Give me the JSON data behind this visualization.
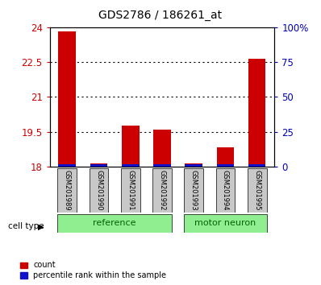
{
  "title": "GDS2786 / 186261_at",
  "samples": [
    "GSM201989",
    "GSM201990",
    "GSM201991",
    "GSM201992",
    "GSM201993",
    "GSM201994",
    "GSM201995"
  ],
  "count_values": [
    23.8,
    18.15,
    19.75,
    19.6,
    18.15,
    18.85,
    22.65
  ],
  "percentile_values": [
    0.12,
    0.12,
    0.12,
    0.12,
    0.1,
    0.12,
    0.12
  ],
  "ymin": 18,
  "ymax": 24,
  "yticks": [
    18,
    19.5,
    21,
    22.5,
    24
  ],
  "ytick_labels": [
    "18",
    "19.5",
    "21",
    "22.5",
    "24"
  ],
  "y2ticks": [
    0,
    25,
    50,
    75,
    100
  ],
  "y2tick_labels": [
    "0",
    "25",
    "50",
    "75",
    "100%"
  ],
  "bar_color_red": "#cc0000",
  "bar_color_blue": "#1111cc",
  "left_axis_color": "#cc0000",
  "right_axis_color": "#0000bb",
  "group_label_color": "#006600",
  "group_bg_color": "#90ee90",
  "sample_bg_color": "#c8c8c8",
  "cell_type_label": "cell type",
  "legend_entries": [
    "count",
    "percentile rank within the sample"
  ],
  "ref_samples": [
    0,
    1,
    2,
    3
  ],
  "mn_samples": [
    4,
    5,
    6
  ],
  "ref_label": "reference",
  "mn_label": "motor neuron"
}
